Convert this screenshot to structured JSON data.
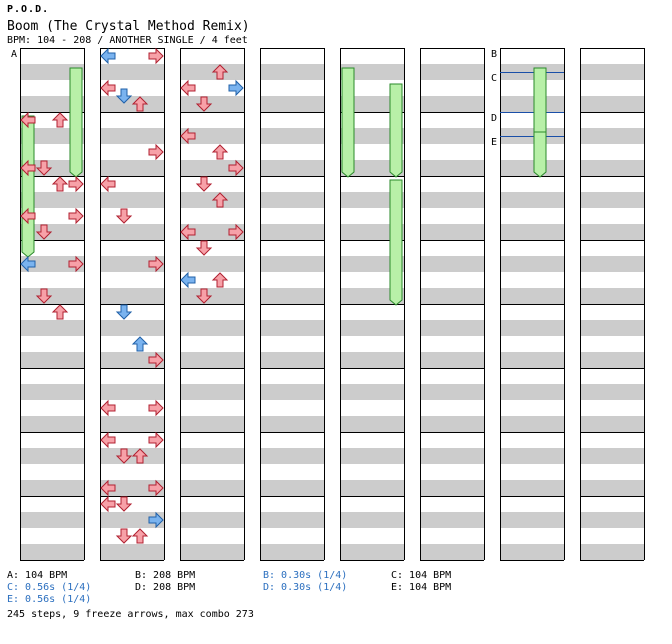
{
  "song": {
    "artist": "P.O.D.",
    "title": "Boom (The Crystal Method Remix)",
    "info": "BPM: 104 - 208 / ANOTHER SINGLE / 4 feet"
  },
  "colors": {
    "note": "#f7a1a8",
    "note_stroke": "#b02030",
    "quarter": "#7ab3ef",
    "quarter_stroke": "#2060a8",
    "eighth_green": "#6ce86c",
    "freeze_body": "#b8f0a8",
    "freeze_stroke": "#2a8a2a",
    "stripe": "#cccccc",
    "marker_line": "#1a4fa8"
  },
  "chart_data": {
    "type": "stepchart",
    "columns": 8,
    "measures_per_column": 8,
    "markers": [
      {
        "label": "A",
        "column": 0,
        "beat": 0
      },
      {
        "label": "B",
        "column": 6,
        "beat": 0
      },
      {
        "label": "C",
        "column": 6,
        "beat": 3
      },
      {
        "label": "D",
        "column": 6,
        "beat": 8
      },
      {
        "label": "E",
        "column": 6,
        "beat": 11
      }
    ],
    "legend": [
      {
        "text": "A: 104 BPM",
        "color": "black"
      },
      {
        "text": "B: 208 BPM",
        "color": "black"
      },
      {
        "text": "B: 0.30s (1/4)",
        "color": "blue"
      },
      {
        "text": "C: 104 BPM",
        "color": "black"
      },
      {
        "text": "C: 0.56s (1/4)",
        "color": "blue"
      },
      {
        "text": "D: 208 BPM",
        "color": "black"
      },
      {
        "text": "D: 0.30s (1/4)",
        "color": "blue"
      },
      {
        "text": "E: 104 BPM",
        "color": "black"
      },
      {
        "text": "E: 0.56s (1/4)",
        "color": "blue"
      }
    ],
    "summary": "245 steps, 9 freeze arrows, max combo 273",
    "arrows": [
      [
        0,
        0,
        8,
        "r"
      ],
      [
        2,
        0,
        8,
        "r"
      ],
      [
        0,
        0,
        14,
        "r"
      ],
      [
        1,
        0,
        14,
        "r"
      ],
      [
        2,
        0,
        16,
        "r"
      ],
      [
        3,
        0,
        16,
        "r"
      ],
      [
        0,
        0,
        20,
        "r"
      ],
      [
        3,
        0,
        20,
        "r"
      ],
      [
        1,
        0,
        22,
        "r"
      ],
      [
        0,
        0,
        26,
        "b"
      ],
      [
        3,
        0,
        26,
        "r"
      ],
      [
        1,
        0,
        30,
        "r"
      ],
      [
        2,
        0,
        32,
        "r"
      ],
      [
        0,
        1,
        0,
        "b"
      ],
      [
        3,
        1,
        0,
        "r"
      ],
      [
        0,
        1,
        4,
        "r"
      ],
      [
        1,
        1,
        5,
        "b"
      ],
      [
        2,
        1,
        6,
        "r"
      ],
      [
        3,
        1,
        12,
        "r"
      ],
      [
        0,
        1,
        16,
        "r"
      ],
      [
        1,
        1,
        20,
        "r"
      ],
      [
        3,
        1,
        26,
        "r"
      ],
      [
        1,
        1,
        32,
        "b"
      ],
      [
        2,
        1,
        36,
        "b"
      ],
      [
        3,
        1,
        38,
        "r"
      ],
      [
        0,
        1,
        44,
        "r"
      ],
      [
        3,
        1,
        44,
        "r"
      ],
      [
        0,
        1,
        48,
        "r"
      ],
      [
        3,
        1,
        48,
        "r"
      ],
      [
        1,
        1,
        50,
        "r"
      ],
      [
        2,
        1,
        50,
        "r"
      ],
      [
        0,
        1,
        54,
        "r"
      ],
      [
        3,
        1,
        54,
        "r"
      ],
      [
        0,
        1,
        56,
        "r"
      ],
      [
        1,
        1,
        56,
        "r"
      ],
      [
        3,
        1,
        58,
        "b"
      ],
      [
        1,
        1,
        60,
        "r"
      ],
      [
        2,
        1,
        60,
        "r"
      ],
      [
        2,
        2,
        2,
        "r"
      ],
      [
        0,
        2,
        4,
        "r"
      ],
      [
        3,
        2,
        4,
        "b"
      ],
      [
        1,
        2,
        6,
        "r"
      ],
      [
        0,
        2,
        10,
        "r"
      ],
      [
        2,
        2,
        12,
        "r"
      ],
      [
        3,
        2,
        14,
        "r"
      ],
      [
        1,
        2,
        16,
        "r"
      ],
      [
        2,
        2,
        18,
        "r"
      ],
      [
        0,
        2,
        22,
        "r"
      ],
      [
        3,
        2,
        22,
        "r"
      ],
      [
        1,
        2,
        24,
        "r"
      ],
      [
        0,
        2,
        28,
        "b"
      ],
      [
        2,
        2,
        28,
        "r"
      ],
      [
        1,
        2,
        30,
        "r"
      ]
    ],
    "freezes": [
      [
        0,
        "g",
        0,
        8,
        24
      ],
      [
        0,
        "g",
        3,
        2,
        14
      ],
      [
        4,
        "g",
        0,
        2,
        14
      ],
      [
        4,
        "g",
        3,
        4,
        14
      ],
      [
        6,
        "g",
        2,
        2,
        9
      ],
      [
        6,
        "g",
        2,
        10,
        14
      ],
      [
        4,
        "g",
        3,
        16,
        30
      ]
    ]
  }
}
